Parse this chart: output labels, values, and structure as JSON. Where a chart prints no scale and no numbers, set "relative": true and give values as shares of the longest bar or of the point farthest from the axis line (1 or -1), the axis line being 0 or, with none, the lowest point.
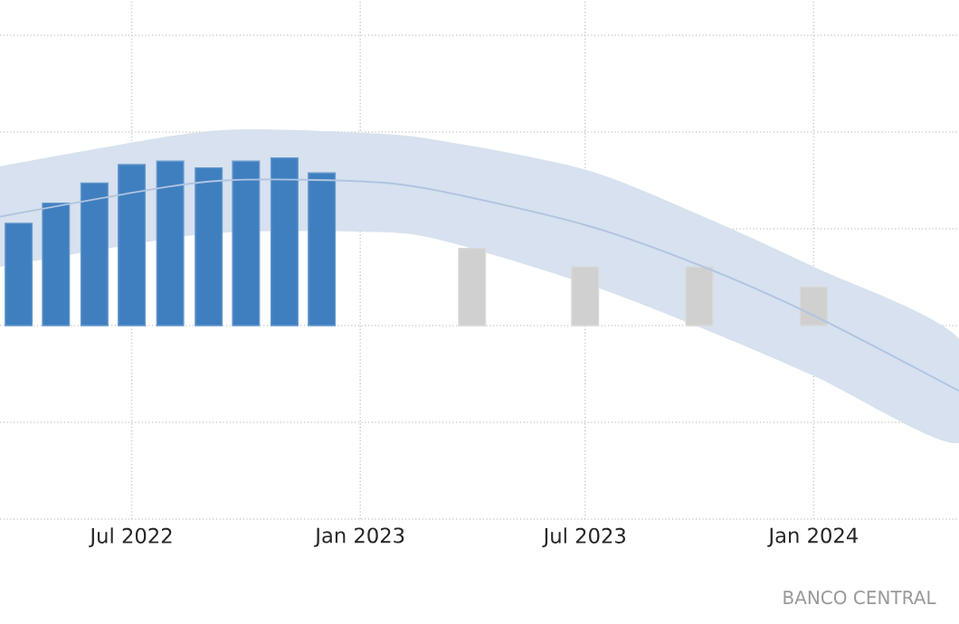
{
  "chart_data": {
    "type": "bar",
    "relative": true,
    "grid": true,
    "xlim": [
      "2022-03-17",
      "2024-04-27"
    ],
    "xticks": [
      {
        "value": "2022-07",
        "label": "Jul 2022"
      },
      {
        "value": "2023-01",
        "label": "Jan 2023"
      },
      {
        "value": "2023-07",
        "label": "Jul 2023"
      },
      {
        "value": "2024-01",
        "label": "Jan 2024"
      }
    ],
    "series": [
      {
        "type": "line",
        "color": "#b0c4e0",
        "x": [
          "2022-03-17",
          "2022-08",
          "2022-10",
          "2023-01",
          "2023-03",
          "2023-07",
          "2023-10",
          "2024-01",
          "2024-04-27"
        ],
        "values": [
          0.65,
          0.83,
          0.87,
          0.86,
          0.81,
          0.6,
          0.36,
          0.06,
          -0.39
        ],
        "lower": [
          0.35,
          0.52,
          0.56,
          0.56,
          0.52,
          0.25,
          -0.01,
          -0.3,
          -0.7
        ],
        "upper": [
          0.95,
          1.13,
          1.17,
          1.15,
          1.11,
          0.93,
          0.66,
          0.35,
          -0.08
        ]
      },
      {
        "color": "#3f7fbf",
        "x": [
          "2022-04",
          "2022-05",
          "2022-06",
          "2022-07",
          "2022-08",
          "2022-09",
          "2022-10",
          "2022-11",
          "2022-12"
        ],
        "values": [
          0.61,
          0.73,
          0.85,
          0.96,
          0.98,
          0.94,
          0.98,
          1,
          0.91
        ]
      },
      {
        "color": "#d0d0d0",
        "x": [
          "2023-04",
          "2023-07",
          "2023-10",
          "2024-01"
        ],
        "values": [
          0.46,
          0.35,
          0.35,
          0.23
        ]
      }
    ],
    "annotations": [
      "BANCO CENTRAL"
    ]
  }
}
